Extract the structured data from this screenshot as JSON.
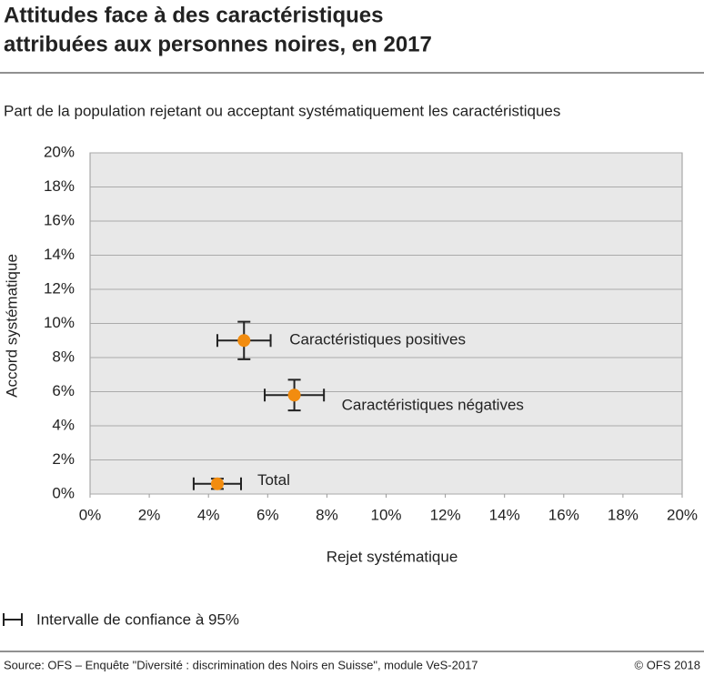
{
  "chart_data": {
    "type": "scatter",
    "title": [
      "Attitudes face à des caractéristiques",
      "attribuées aux personnes noires, en 2017"
    ],
    "subtitle": "Part de la population rejetant ou acceptant systématiquement les caractéristiques",
    "xlabel": "Rejet systématique",
    "ylabel": "Accord systématique",
    "xlim": [
      0,
      20
    ],
    "ylim": [
      0,
      20
    ],
    "xticks": [
      {
        "value": 0,
        "label": "0%"
      },
      {
        "value": 2,
        "label": "2%"
      },
      {
        "value": 4,
        "label": "4%"
      },
      {
        "value": 6,
        "label": "6%"
      },
      {
        "value": 8,
        "label": "8%"
      },
      {
        "value": 10,
        "label": "10%"
      },
      {
        "value": 12,
        "label": "12%"
      },
      {
        "value": 14,
        "label": "14%"
      },
      {
        "value": 16,
        "label": "16%"
      },
      {
        "value": 18,
        "label": "18%"
      },
      {
        "value": 20,
        "label": "20%"
      }
    ],
    "yticks": [
      {
        "value": 0,
        "label": "0%"
      },
      {
        "value": 2,
        "label": "2%"
      },
      {
        "value": 4,
        "label": "4%"
      },
      {
        "value": 6,
        "label": "6%"
      },
      {
        "value": 8,
        "label": "8%"
      },
      {
        "value": 10,
        "label": "10%"
      },
      {
        "value": 12,
        "label": "12%"
      },
      {
        "value": 14,
        "label": "14%"
      },
      {
        "value": 16,
        "label": "16%"
      },
      {
        "value": 18,
        "label": "18%"
      },
      {
        "value": 20,
        "label": "20%"
      }
    ],
    "grid": true,
    "series": [
      {
        "name": "Caractéristiques positives",
        "color": "#f28c0f",
        "x": [
          5.2
        ],
        "values": [
          9.0
        ],
        "xerr": [
          0.9
        ],
        "yerr": [
          1.1
        ]
      },
      {
        "name": "Caractéristiques négatives",
        "color": "#f28c0f",
        "x": [
          6.9
        ],
        "values": [
          5.8
        ],
        "xerr": [
          1.0
        ],
        "yerr": [
          0.9
        ]
      },
      {
        "name": "Total",
        "color": "#f28c0f",
        "x": [
          4.3
        ],
        "values": [
          0.6
        ],
        "xerr": [
          0.8
        ],
        "yerr": [
          0.3
        ]
      }
    ],
    "legend_note": "Intervalle de confiance à 95%",
    "source": "Source: OFS – Enquête \"Diversité : discrimination des Noirs en Suisse\", module VeS-2017",
    "credit": "© OFS 2018"
  }
}
